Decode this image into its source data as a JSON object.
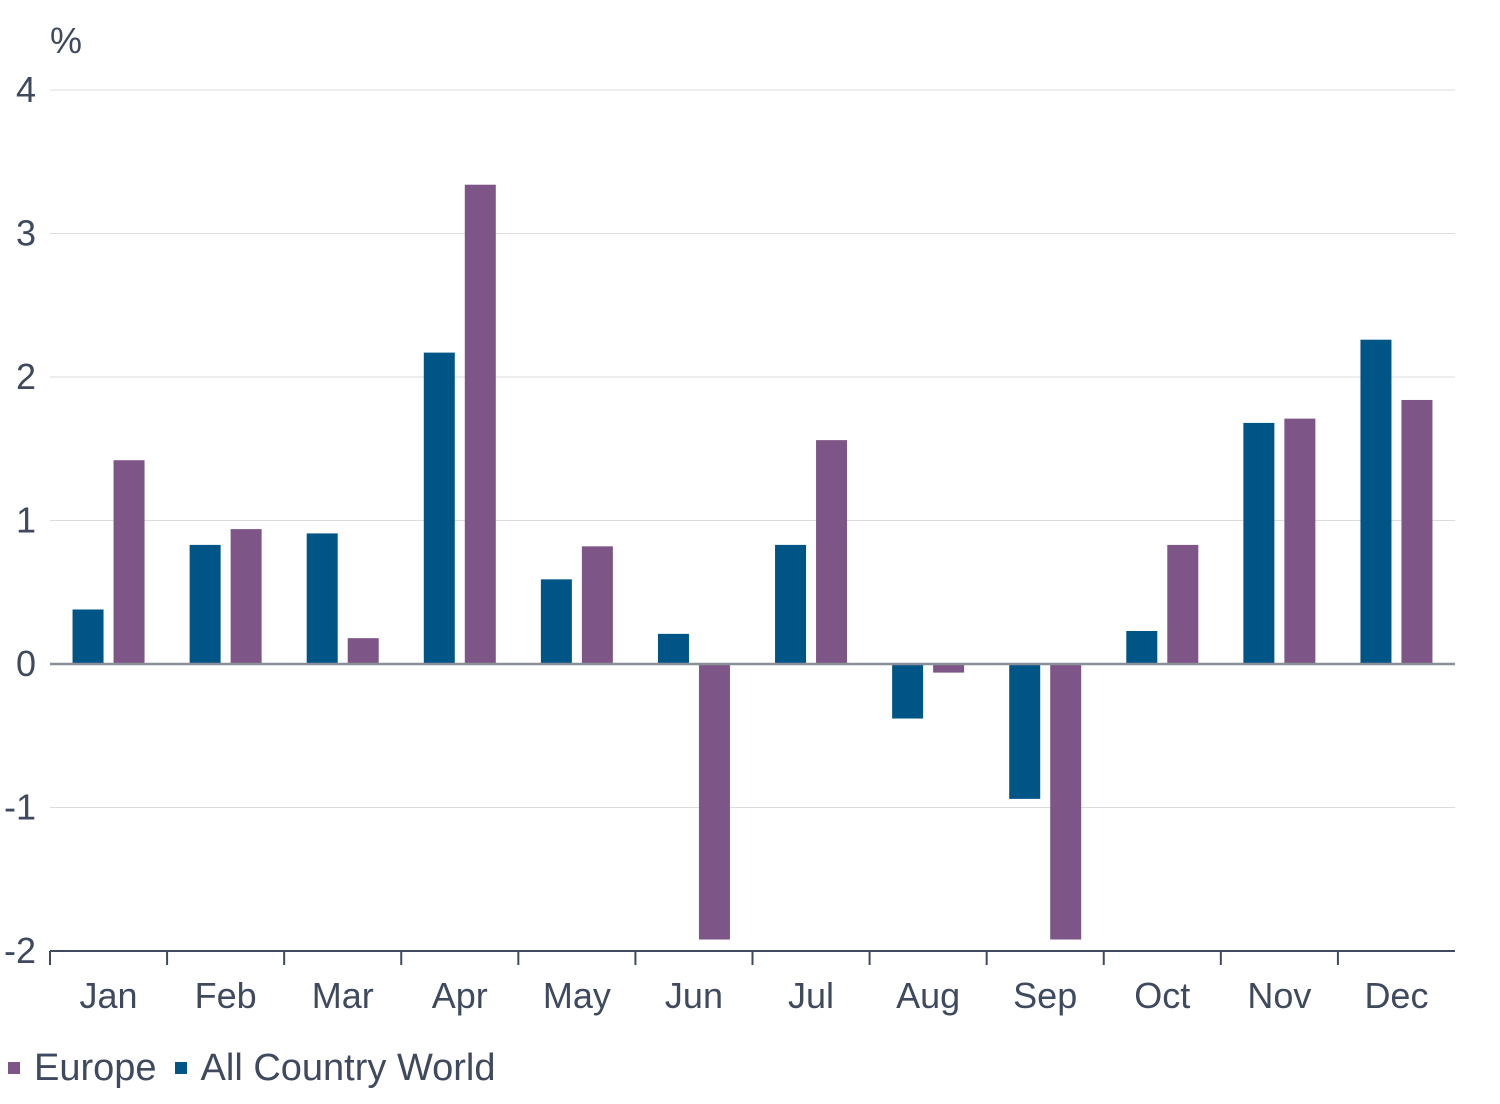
{
  "chart_data": {
    "type": "bar",
    "unit_label": "%",
    "categories": [
      "Jan",
      "Feb",
      "Mar",
      "Apr",
      "May",
      "Jun",
      "Jul",
      "Aug",
      "Sep",
      "Oct",
      "Nov",
      "Dec"
    ],
    "series": [
      {
        "name": "All Country World",
        "color": "#005587",
        "values": [
          0.38,
          0.83,
          0.91,
          2.17,
          0.59,
          0.21,
          0.83,
          -0.38,
          -0.94,
          0.23,
          1.68,
          2.26
        ]
      },
      {
        "name": "Europe",
        "color": "#7d5586",
        "values": [
          1.42,
          0.94,
          0.18,
          3.34,
          0.82,
          -1.92,
          1.56,
          -0.06,
          -1.92,
          0.83,
          1.71,
          1.84
        ]
      }
    ],
    "ylim": [
      -2,
      4
    ],
    "yticks": [
      4,
      3,
      2,
      1,
      0,
      -1,
      -2
    ],
    "grid": true,
    "legend": {
      "placement": "bottom-left",
      "order": [
        "Europe",
        "All Country World"
      ]
    }
  }
}
